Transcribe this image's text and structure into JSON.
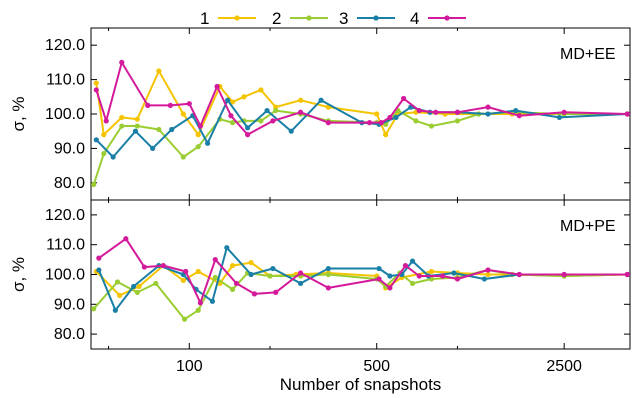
{
  "chart_data": {
    "type": "line",
    "xlabel": "Number of snapshots",
    "x_scale": "log",
    "xlim": [
      43,
      4400
    ],
    "x_ticks": [
      {
        "value": 100,
        "label": "100"
      },
      {
        "value": 500,
        "label": "500"
      },
      {
        "value": 2500,
        "label": "2500"
      }
    ],
    "legend": {
      "placement": "top",
      "entries": [
        {
          "label": "1",
          "color": "#f5c400"
        },
        {
          "label": "2",
          "color": "#9acd32"
        },
        {
          "label": "3",
          "color": "#1a7fa6"
        },
        {
          "label": "4",
          "color": "#d4199b"
        }
      ]
    },
    "panels": [
      {
        "label": "MD+EE",
        "ylabel": "σ, %",
        "ylim": [
          75,
          125
        ],
        "y_ticks": [
          {
            "value": 80,
            "label": "80.0"
          },
          {
            "value": 90,
            "label": "90.0"
          },
          {
            "value": 100,
            "label": "100.0"
          },
          {
            "value": 110,
            "label": "110.0"
          },
          {
            "value": 120,
            "label": "120.0"
          }
        ],
        "series": [
          {
            "name": "1",
            "color": "#f5c400",
            "points": [
              [
                45,
                109
              ],
              [
                48,
                94
              ],
              [
                56,
                99
              ],
              [
                64,
                98.5
              ],
              [
                77,
                112.5
              ],
              [
                95,
                100
              ],
              [
                108,
                94
              ],
              [
                130,
                108
              ],
              [
                145,
                103.5
              ],
              [
                160,
                105
              ],
              [
                185,
                107
              ],
              [
                210,
                102
              ],
              [
                260,
                104
              ],
              [
                330,
                102
              ],
              [
                500,
                100
              ],
              [
                540,
                94
              ],
              [
                600,
                100
              ],
              [
                700,
                100.5
              ],
              [
                900,
                100
              ],
              [
                1200,
                100
              ],
              [
                1600,
                100
              ],
              [
                2500,
                100
              ],
              [
                4300,
                100
              ]
            ]
          },
          {
            "name": "2",
            "color": "#9acd32",
            "points": [
              [
                44,
                79.5
              ],
              [
                48,
                88.5
              ],
              [
                56,
                96.5
              ],
              [
                64,
                96.5
              ],
              [
                77,
                95.5
              ],
              [
                95,
                87.5
              ],
              [
                108,
                90.5
              ],
              [
                130,
                98.5
              ],
              [
                145,
                97.5
              ],
              [
                160,
                98
              ],
              [
                185,
                98
              ],
              [
                210,
                101
              ],
              [
                260,
                100
              ],
              [
                330,
                98
              ],
              [
                500,
                97.5
              ],
              [
                540,
                97
              ],
              [
                600,
                101
              ],
              [
                700,
                98
              ],
              [
                800,
                96.5
              ],
              [
                1000,
                98
              ],
              [
                1200,
                100
              ],
              [
                1600,
                100.5
              ],
              [
                2500,
                100
              ],
              [
                4300,
                100
              ]
            ]
          },
          {
            "name": "3",
            "color": "#1a7fa6",
            "points": [
              [
                45,
                92.5
              ],
              [
                52,
                87.5
              ],
              [
                63,
                95
              ],
              [
                73,
                90
              ],
              [
                86,
                95.5
              ],
              [
                103,
                99.5
              ],
              [
                117,
                91.5
              ],
              [
                139,
                104
              ],
              [
                165,
                96
              ],
              [
                195,
                101
              ],
              [
                240,
                95
              ],
              [
                310,
                104
              ],
              [
                440,
                97.5
              ],
              [
                510,
                97
              ],
              [
                590,
                99
              ],
              [
                670,
                102
              ],
              [
                790,
                100.5
              ],
              [
                1000,
                100.5
              ],
              [
                1300,
                100
              ],
              [
                1650,
                101
              ],
              [
                2400,
                99
              ],
              [
                4300,
                100
              ]
            ]
          },
          {
            "name": "4",
            "color": "#d4199b",
            "points": [
              [
                45,
                107
              ],
              [
                49,
                98
              ],
              [
                56,
                115
              ],
              [
                70,
                102.5
              ],
              [
                85,
                102.5
              ],
              [
                100,
                103
              ],
              [
                110,
                96.5
              ],
              [
                127,
                108
              ],
              [
                143,
                99.5
              ],
              [
                165,
                94
              ],
              [
                205,
                98
              ],
              [
                260,
                100.5
              ],
              [
                330,
                97.5
              ],
              [
                470,
                97.5
              ],
              [
                520,
                97.5
              ],
              [
                560,
                99
              ],
              [
                630,
                104.5
              ],
              [
                720,
                101
              ],
              [
                830,
                100.5
              ],
              [
                1000,
                100.5
              ],
              [
                1300,
                102
              ],
              [
                1700,
                99.5
              ],
              [
                2500,
                100.5
              ],
              [
                4300,
                100
              ]
            ]
          }
        ]
      },
      {
        "label": "MD+PE",
        "ylabel": "σ, %",
        "ylim": [
          75,
          125
        ],
        "y_ticks": [
          {
            "value": 80,
            "label": "80.0"
          },
          {
            "value": 90,
            "label": "90.0"
          },
          {
            "value": 100,
            "label": "100.0"
          },
          {
            "value": 110,
            "label": "110.0"
          },
          {
            "value": 120,
            "label": "120.0"
          }
        ],
        "series": [
          {
            "name": "1",
            "color": "#f5c400",
            "points": [
              [
                45,
                101
              ],
              [
                55,
                93
              ],
              [
                65,
                96
              ],
              [
                80,
                103
              ],
              [
                95,
                98
              ],
              [
                108,
                101
              ],
              [
                130,
                97
              ],
              [
                145,
                103
              ],
              [
                170,
                104
              ],
              [
                200,
                99.5
              ],
              [
                250,
                100
              ],
              [
                330,
                100.5
              ],
              [
                500,
                99.5
              ],
              [
                540,
                95.5
              ],
              [
                620,
                99
              ],
              [
                800,
                101
              ],
              [
                1000,
                100.5
              ],
              [
                1300,
                100
              ],
              [
                1600,
                100
              ],
              [
                2500,
                99.5
              ],
              [
                4300,
                100
              ]
            ]
          },
          {
            "name": "2",
            "color": "#9acd32",
            "points": [
              [
                44,
                88.5
              ],
              [
                54,
                97.5
              ],
              [
                64,
                94
              ],
              [
                75,
                97
              ],
              [
                96,
                85
              ],
              [
                108,
                88
              ],
              [
                125,
                99
              ],
              [
                145,
                95
              ],
              [
                165,
                100.5
              ],
              [
                200,
                99.5
              ],
              [
                260,
                99.5
              ],
              [
                330,
                100
              ],
              [
                500,
                98.5
              ],
              [
                540,
                96
              ],
              [
                610,
                100.5
              ],
              [
                680,
                97
              ],
              [
                800,
                98.5
              ],
              [
                1000,
                99
              ],
              [
                1300,
                101.5
              ],
              [
                1600,
                100
              ],
              [
                2500,
                99.5
              ],
              [
                4300,
                100
              ]
            ]
          },
          {
            "name": "3",
            "color": "#1a7fa6",
            "points": [
              [
                46,
                101.5
              ],
              [
                53,
                88
              ],
              [
                62,
                96
              ],
              [
                77,
                103
              ],
              [
                95,
                100
              ],
              [
                106,
                95
              ],
              [
                122,
                91
              ],
              [
                138,
                109
              ],
              [
                170,
                100
              ],
              [
                205,
                102
              ],
              [
                260,
                97
              ],
              [
                330,
                102
              ],
              [
                510,
                102
              ],
              [
                560,
                99.5
              ],
              [
                620,
                100
              ],
              [
                680,
                104.5
              ],
              [
                780,
                99.5
              ],
              [
                970,
                100.5
              ],
              [
                1260,
                98.5
              ],
              [
                1700,
                100
              ],
              [
                2500,
                100
              ],
              [
                4300,
                100
              ]
            ]
          },
          {
            "name": "4",
            "color": "#d4199b",
            "points": [
              [
                46,
                105.5
              ],
              [
                58,
                112
              ],
              [
                68,
                102.5
              ],
              [
                80,
                103
              ],
              [
                97,
                101
              ],
              [
                110,
                90.5
              ],
              [
                125,
                105
              ],
              [
                150,
                97
              ],
              [
                175,
                93.5
              ],
              [
                210,
                94
              ],
              [
                260,
                100.5
              ],
              [
                330,
                95.5
              ],
              [
                510,
                98.5
              ],
              [
                560,
                95.5
              ],
              [
                640,
                103
              ],
              [
                720,
                99.5
              ],
              [
                880,
                99.5
              ],
              [
                1000,
                98.5
              ],
              [
                1300,
                101.5
              ],
              [
                1700,
                100
              ],
              [
                2500,
                100
              ],
              [
                4300,
                100
              ]
            ]
          }
        ]
      }
    ]
  }
}
